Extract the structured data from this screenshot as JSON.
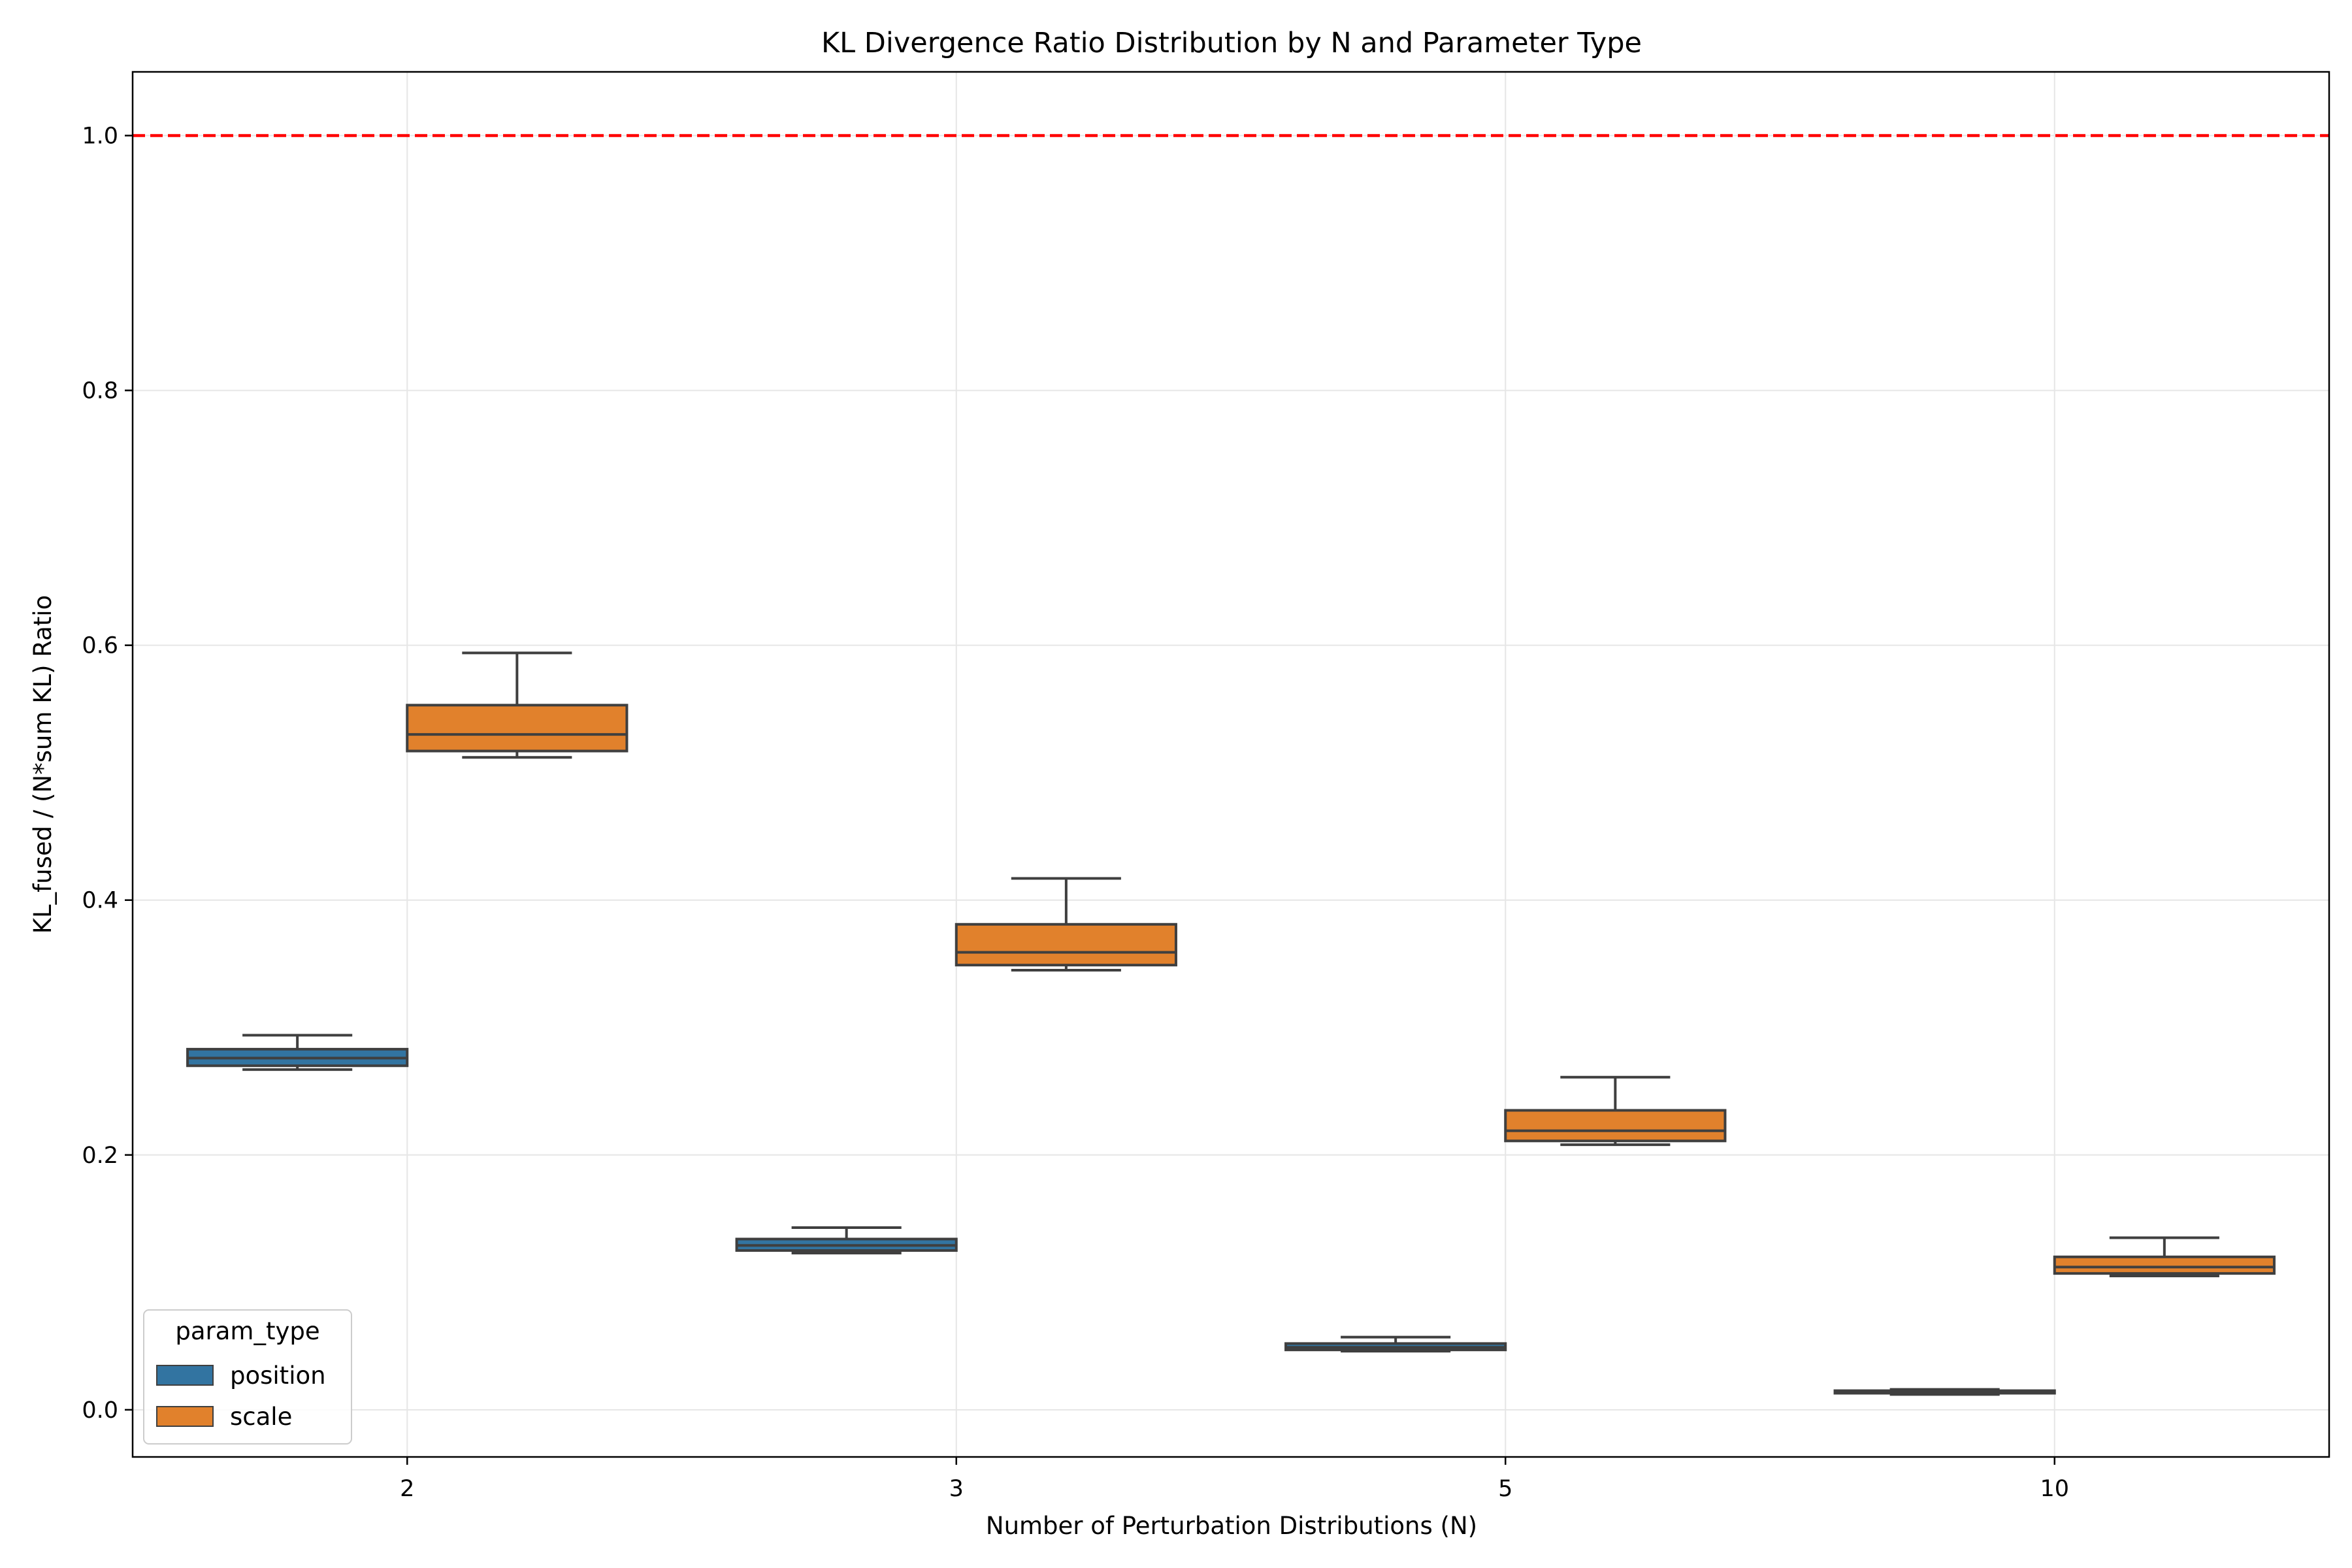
{
  "chart_data": {
    "type": "boxplot",
    "title": "KL Divergence Ratio Distribution by N and Parameter Type",
    "xlabel": "Number of Perturbation Distributions (N)",
    "ylabel": "KL_fused / (N*sum KL) Ratio",
    "categories": [
      "2",
      "3",
      "5",
      "10"
    ],
    "ylim": [
      -0.037,
      1.05
    ],
    "yticks": [
      0.0,
      0.2,
      0.4,
      0.6,
      0.8,
      1.0
    ],
    "ytick_labels": [
      "0.0",
      "0.2",
      "0.4",
      "0.6",
      "0.8",
      "1.0"
    ],
    "grid": true,
    "reference_line": {
      "y": 1.0,
      "color": "#ff0000",
      "style": "dashed"
    },
    "legend": {
      "title": "param_type",
      "placement": "lower-left",
      "entries": [
        "position",
        "scale"
      ]
    },
    "series": [
      {
        "name": "position",
        "color": "#3274a1",
        "boxes": [
          {
            "min": 0.267,
            "q1": 0.27,
            "median": 0.276,
            "q3": 0.283,
            "max": 0.294
          },
          {
            "min": 0.123,
            "q1": 0.125,
            "median": 0.129,
            "q3": 0.134,
            "max": 0.143
          },
          {
            "min": 0.046,
            "q1": 0.047,
            "median": 0.049,
            "q3": 0.052,
            "max": 0.057
          },
          {
            "min": 0.012,
            "q1": 0.013,
            "median": 0.014,
            "q3": 0.015,
            "max": 0.016
          }
        ]
      },
      {
        "name": "scale",
        "color": "#e1812c",
        "boxes": [
          {
            "min": 0.512,
            "q1": 0.517,
            "median": 0.53,
            "q3": 0.553,
            "max": 0.594
          },
          {
            "min": 0.345,
            "q1": 0.349,
            "median": 0.359,
            "q3": 0.381,
            "max": 0.417
          },
          {
            "min": 0.208,
            "q1": 0.211,
            "median": 0.219,
            "q3": 0.235,
            "max": 0.261
          },
          {
            "min": 0.105,
            "q1": 0.107,
            "median": 0.112,
            "q3": 0.12,
            "max": 0.135
          }
        ]
      }
    ]
  }
}
